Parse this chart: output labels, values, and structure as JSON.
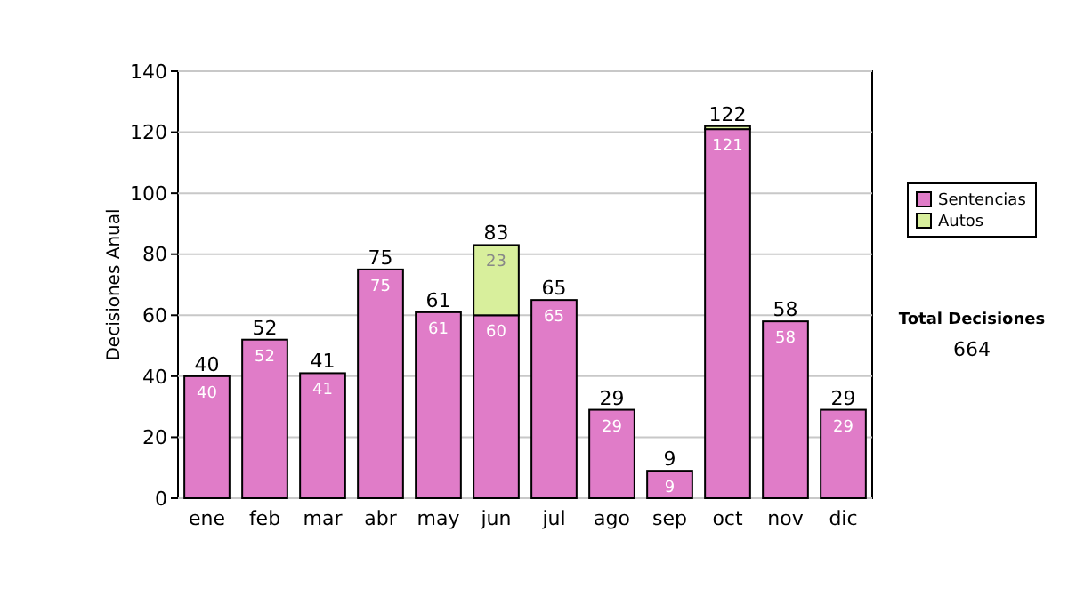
{
  "chart_data": {
    "type": "bar",
    "ylabel": "Decisiones Anual",
    "categories": [
      "ene",
      "feb",
      "mar",
      "abr",
      "may",
      "jun",
      "jul",
      "ago",
      "sep",
      "oct",
      "nov",
      "dic"
    ],
    "series": [
      {
        "name": "Sentencias",
        "color": "#e07cc8",
        "values": [
          40,
          52,
          41,
          75,
          61,
          60,
          65,
          29,
          9,
          121,
          58,
          29
        ],
        "value_labels": [
          "40",
          "52",
          "41",
          "75",
          "61",
          "60",
          "65",
          "29",
          "9",
          "121",
          "58",
          "29"
        ]
      },
      {
        "name": "Autos",
        "color": "#d8ef9c",
        "values": [
          0,
          0,
          0,
          0,
          0,
          23,
          0,
          0,
          0,
          1,
          0,
          0
        ],
        "value_labels": [
          null,
          null,
          null,
          null,
          null,
          "23",
          null,
          null,
          null,
          null,
          null,
          null
        ]
      }
    ],
    "stacked": true,
    "totals": [
      "40",
      "52",
      "41",
      "75",
      "61",
      "83",
      "65",
      "29",
      "9",
      "122",
      "58",
      "29"
    ],
    "ylim": [
      0,
      140
    ],
    "yticks": [
      0,
      20,
      40,
      60,
      80,
      100,
      120,
      140
    ],
    "grid": "y",
    "legend": "right",
    "annotations": [
      "Total Decisiones",
      "664"
    ]
  }
}
